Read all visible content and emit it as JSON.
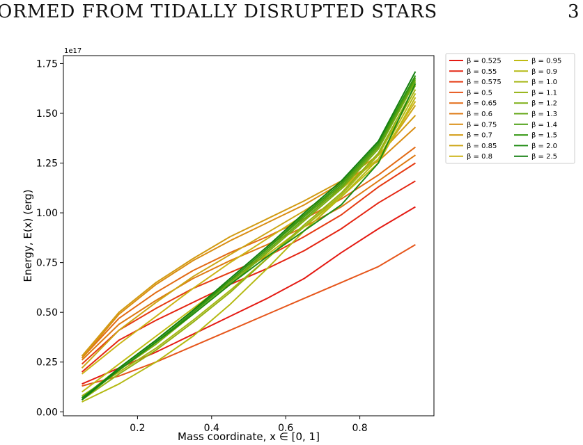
{
  "page_header": {
    "running_title": "ORMED FROM TIDALLY DISRUPTED STARS",
    "page_number": "3"
  },
  "chart_data": {
    "type": "line",
    "title": "",
    "xlabel": "Mass coordinate, x ∈ [0, 1]",
    "ylabel": "Energy, E(x) (erg)",
    "y_scale_label": "1e17",
    "y_multiplier": 1e+17,
    "xlim": [
      0.0,
      1.0
    ],
    "ylim": [
      -0.02,
      1.79
    ],
    "xticks": [
      0.2,
      0.4,
      0.6,
      0.8
    ],
    "xtick_labels": [
      "0.2",
      "0.4",
      "0.6",
      "0.8"
    ],
    "yticks": [
      0.0,
      0.25,
      0.5,
      0.75,
      1.0,
      1.25,
      1.5,
      1.75
    ],
    "ytick_labels": [
      "0.00",
      "0.25",
      "0.50",
      "0.75",
      "1.00",
      "1.25",
      "1.50",
      "1.75"
    ],
    "grid": false,
    "legend_position": "outside-right",
    "legend_columns": 2,
    "x": [
      0.05,
      0.15,
      0.25,
      0.35,
      0.45,
      0.55,
      0.65,
      0.75,
      0.85,
      0.95
    ],
    "series": [
      {
        "name": "β = 0.525",
        "color": "#e41a13",
        "values": [
          0.14,
          0.22,
          0.3,
          0.39,
          0.48,
          0.57,
          0.67,
          0.8,
          0.92,
          1.03
        ]
      },
      {
        "name": "β = 0.55",
        "color": "#e42512",
        "values": [
          0.2,
          0.36,
          0.46,
          0.55,
          0.64,
          0.72,
          0.81,
          0.92,
          1.05,
          1.16
        ]
      },
      {
        "name": "β = 0.575",
        "color": "#e53a12",
        "values": [
          0.24,
          0.41,
          0.52,
          0.62,
          0.7,
          0.78,
          0.88,
          0.99,
          1.13,
          1.25
        ]
      },
      {
        "name": "β = 0.5",
        "color": "#e6561b",
        "values": [
          0.13,
          0.18,
          0.25,
          0.33,
          0.41,
          0.49,
          0.57,
          0.65,
          0.73,
          0.84
        ]
      },
      {
        "name": "β = 0.65",
        "color": "#e26a14",
        "values": [
          0.27,
          0.47,
          0.6,
          0.71,
          0.8,
          0.88,
          0.97,
          1.07,
          1.19,
          1.33
        ]
      },
      {
        "name": "β = 0.6",
        "color": "#de7a13",
        "values": [
          0.26,
          0.44,
          0.56,
          0.67,
          0.76,
          0.84,
          0.93,
          1.03,
          1.16,
          1.29
        ]
      },
      {
        "name": "β = 0.75",
        "color": "#d98d12",
        "values": [
          0.27,
          0.49,
          0.64,
          0.76,
          0.86,
          0.95,
          1.04,
          1.15,
          1.26,
          1.43
        ]
      },
      {
        "name": "β = 0.7",
        "color": "#d29b12",
        "values": [
          0.28,
          0.5,
          0.65,
          0.77,
          0.88,
          0.97,
          1.06,
          1.16,
          1.29,
          1.49
        ]
      },
      {
        "name": "β = 0.85",
        "color": "#cca515",
        "values": [
          0.22,
          0.41,
          0.55,
          0.68,
          0.79,
          0.9,
          1.01,
          1.13,
          1.27,
          1.54
        ]
      },
      {
        "name": "β = 0.8",
        "color": "#cbb416",
        "values": [
          0.19,
          0.34,
          0.48,
          0.62,
          0.75,
          0.87,
          0.99,
          1.12,
          1.27,
          1.56
        ]
      },
      {
        "name": "β = 0.95",
        "color": "#c0bb12",
        "values": [
          0.1,
          0.24,
          0.38,
          0.52,
          0.66,
          0.79,
          0.93,
          1.08,
          1.25,
          1.58
        ]
      },
      {
        "name": "β = 0.9",
        "color": "#b4b912",
        "values": [
          0.05,
          0.14,
          0.25,
          0.38,
          0.54,
          0.72,
          0.91,
          1.08,
          1.27,
          1.6
        ]
      },
      {
        "name": "β = 1.0",
        "color": "#a6b616",
        "values": [
          0.08,
          0.2,
          0.32,
          0.46,
          0.61,
          0.77,
          0.93,
          1.09,
          1.29,
          1.62
        ]
      },
      {
        "name": "β = 1.1",
        "color": "#93b111",
        "values": [
          0.06,
          0.19,
          0.31,
          0.45,
          0.6,
          0.77,
          0.94,
          1.1,
          1.3,
          1.64
        ]
      },
      {
        "name": "β = 1.2",
        "color": "#7bad12",
        "values": [
          0.07,
          0.21,
          0.34,
          0.49,
          0.64,
          0.8,
          0.96,
          1.12,
          1.32,
          1.66
        ]
      },
      {
        "name": "β = 1.3",
        "color": "#62a513",
        "values": [
          0.07,
          0.21,
          0.35,
          0.5,
          0.65,
          0.81,
          0.97,
          1.13,
          1.33,
          1.67
        ]
      },
      {
        "name": "β = 1.4",
        "color": "#4b9f12",
        "values": [
          0.07,
          0.22,
          0.36,
          0.51,
          0.66,
          0.82,
          0.98,
          1.14,
          1.34,
          1.68
        ]
      },
      {
        "name": "β = 1.5",
        "color": "#339611",
        "values": [
          0.06,
          0.21,
          0.35,
          0.5,
          0.66,
          0.82,
          0.99,
          1.15,
          1.35,
          1.69
        ]
      },
      {
        "name": "β = 2.0",
        "color": "#1e8b12",
        "values": [
          0.07,
          0.21,
          0.35,
          0.49,
          0.64,
          0.78,
          0.91,
          1.04,
          1.25,
          1.65
        ]
      },
      {
        "name": "β = 2.5",
        "color": "#147f10",
        "values": [
          0.06,
          0.22,
          0.36,
          0.51,
          0.67,
          0.83,
          1.0,
          1.16,
          1.36,
          1.71
        ]
      }
    ]
  }
}
